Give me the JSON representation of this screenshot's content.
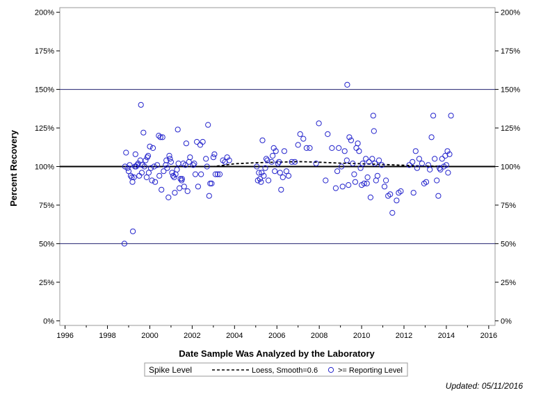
{
  "chart_data": {
    "type": "scatter",
    "xlabel": "Date Sample Was Analyzed by the Laboratory",
    "ylabel": "Percent Recovery",
    "xlim": [
      1995.75,
      2016.3
    ],
    "ylim": [
      -3,
      203
    ],
    "x_ticks": [
      1996,
      1998,
      2000,
      2002,
      2004,
      2006,
      2008,
      2010,
      2012,
      2014,
      2016
    ],
    "x_tick_labels": [
      "1996",
      "1998",
      "2000",
      "2002",
      "2004",
      "2006",
      "2008",
      "2010",
      "2012",
      "2014",
      "2016"
    ],
    "y_ticks": [
      0,
      25,
      50,
      75,
      100,
      125,
      150,
      175,
      200
    ],
    "y_tick_labels": [
      "0%",
      "25%",
      "50%",
      "75%",
      "100%",
      "125%",
      "150%",
      "175%",
      "200%"
    ],
    "grid": false,
    "reference_lines": [
      {
        "y": 50,
        "style": "thin",
        "color": "#1f1f6e"
      },
      {
        "y": 100,
        "style": "thick",
        "color": "#000000"
      },
      {
        "y": 150,
        "style": "thin",
        "color": "#1f1f6e"
      }
    ],
    "legend": {
      "placement": "bottom",
      "title": "Spike Level",
      "entries": [
        {
          "label": "Loess, Smooth=0.6",
          "marker": "dashed-line"
        },
        {
          "label": ">= Reporting Level",
          "marker": "circle"
        }
      ]
    },
    "series": [
      {
        "name": ">= Reporting Level",
        "kind": "scatter",
        "color": "#2222cc",
        "points": [
          [
            1998.8,
            50
          ],
          [
            1998.83,
            100
          ],
          [
            1998.88,
            109
          ],
          [
            1998.95,
            99
          ],
          [
            1999.0,
            97
          ],
          [
            1999.05,
            101
          ],
          [
            1999.1,
            94
          ],
          [
            1999.15,
            93
          ],
          [
            1999.18,
            90
          ],
          [
            1999.2,
            58
          ],
          [
            1999.25,
            93
          ],
          [
            1999.3,
            100
          ],
          [
            1999.32,
            108
          ],
          [
            1999.35,
            100
          ],
          [
            1999.4,
            101
          ],
          [
            1999.45,
            102
          ],
          [
            1999.5,
            94
          ],
          [
            1999.55,
            104
          ],
          [
            1999.58,
            140
          ],
          [
            1999.62,
            96
          ],
          [
            1999.65,
            101
          ],
          [
            1999.7,
            122
          ],
          [
            1999.75,
            100
          ],
          [
            1999.8,
            104
          ],
          [
            1999.85,
            93
          ],
          [
            1999.88,
            106
          ],
          [
            1999.92,
            107
          ],
          [
            1999.95,
            96
          ],
          [
            2000.0,
            113
          ],
          [
            2000.05,
            99
          ],
          [
            2000.1,
            91
          ],
          [
            2000.15,
            112
          ],
          [
            2000.2,
            100
          ],
          [
            2000.25,
            90
          ],
          [
            2000.35,
            101
          ],
          [
            2000.42,
            120
          ],
          [
            2000.45,
            94
          ],
          [
            2000.5,
            119
          ],
          [
            2000.55,
            85
          ],
          [
            2000.6,
            119
          ],
          [
            2000.65,
            97
          ],
          [
            2000.75,
            101
          ],
          [
            2000.78,
            104
          ],
          [
            2000.82,
            99
          ],
          [
            2000.88,
            80
          ],
          [
            2000.92,
            107
          ],
          [
            2000.95,
            105
          ],
          [
            2001.0,
            103
          ],
          [
            2001.05,
            96
          ],
          [
            2001.1,
            94
          ],
          [
            2001.15,
            93
          ],
          [
            2001.18,
            83
          ],
          [
            2001.22,
            95
          ],
          [
            2001.28,
            98
          ],
          [
            2001.32,
            124
          ],
          [
            2001.35,
            102
          ],
          [
            2001.4,
            86
          ],
          [
            2001.45,
            92
          ],
          [
            2001.5,
            91
          ],
          [
            2001.52,
            92
          ],
          [
            2001.58,
            102
          ],
          [
            2001.62,
            87
          ],
          [
            2001.68,
            101
          ],
          [
            2001.72,
            115
          ],
          [
            2001.78,
            84
          ],
          [
            2001.85,
            103
          ],
          [
            2001.9,
            106
          ],
          [
            2002.05,
            101
          ],
          [
            2002.1,
            102
          ],
          [
            2002.15,
            95
          ],
          [
            2002.22,
            116
          ],
          [
            2002.28,
            87
          ],
          [
            2002.38,
            114
          ],
          [
            2002.42,
            95
          ],
          [
            2002.5,
            116
          ],
          [
            2002.65,
            105
          ],
          [
            2002.7,
            100
          ],
          [
            2002.75,
            127
          ],
          [
            2002.8,
            81
          ],
          [
            2002.85,
            89
          ],
          [
            2002.92,
            89
          ],
          [
            2003.0,
            106
          ],
          [
            2003.05,
            108
          ],
          [
            2003.1,
            95
          ],
          [
            2003.2,
            95
          ],
          [
            2003.3,
            95
          ],
          [
            2003.45,
            104
          ],
          [
            2003.55,
            103
          ],
          [
            2003.65,
            106
          ],
          [
            2003.75,
            104
          ],
          [
            2005.05,
            100
          ],
          [
            2005.1,
            91
          ],
          [
            2005.15,
            96
          ],
          [
            2005.2,
            92
          ],
          [
            2005.25,
            90
          ],
          [
            2005.28,
            96
          ],
          [
            2005.32,
            117
          ],
          [
            2005.38,
            94
          ],
          [
            2005.45,
            99
          ],
          [
            2005.5,
            105
          ],
          [
            2005.55,
            104
          ],
          [
            2005.6,
            91
          ],
          [
            2005.75,
            103
          ],
          [
            2005.8,
            107
          ],
          [
            2005.85,
            112
          ],
          [
            2005.9,
            97
          ],
          [
            2005.95,
            110
          ],
          [
            2006.05,
            102
          ],
          [
            2006.1,
            103
          ],
          [
            2006.15,
            96
          ],
          [
            2006.2,
            85
          ],
          [
            2006.28,
            93
          ],
          [
            2006.35,
            110
          ],
          [
            2006.45,
            97
          ],
          [
            2006.55,
            94
          ],
          [
            2006.7,
            103
          ],
          [
            2006.85,
            103
          ],
          [
            2007.0,
            114
          ],
          [
            2007.1,
            121
          ],
          [
            2007.25,
            118
          ],
          [
            2007.4,
            112
          ],
          [
            2007.55,
            112
          ],
          [
            2007.85,
            102
          ],
          [
            2007.98,
            128
          ],
          [
            2008.3,
            91
          ],
          [
            2008.4,
            121
          ],
          [
            2008.6,
            112
          ],
          [
            2008.78,
            86
          ],
          [
            2008.85,
            97
          ],
          [
            2008.92,
            112
          ],
          [
            2009.05,
            100
          ],
          [
            2009.1,
            87
          ],
          [
            2009.2,
            110
          ],
          [
            2009.3,
            104
          ],
          [
            2009.32,
            153
          ],
          [
            2009.38,
            88
          ],
          [
            2009.42,
            119
          ],
          [
            2009.5,
            117
          ],
          [
            2009.58,
            102
          ],
          [
            2009.65,
            95
          ],
          [
            2009.7,
            90
          ],
          [
            2009.75,
            112
          ],
          [
            2009.82,
            115
          ],
          [
            2009.88,
            110
          ],
          [
            2009.95,
            99
          ],
          [
            2010.0,
            88
          ],
          [
            2010.05,
            102
          ],
          [
            2010.12,
            89
          ],
          [
            2010.2,
            105
          ],
          [
            2010.25,
            89
          ],
          [
            2010.28,
            93
          ],
          [
            2010.35,
            103
          ],
          [
            2010.42,
            80
          ],
          [
            2010.5,
            105
          ],
          [
            2010.55,
            133
          ],
          [
            2010.58,
            123
          ],
          [
            2010.62,
            102
          ],
          [
            2010.68,
            91
          ],
          [
            2010.75,
            94
          ],
          [
            2010.82,
            104
          ],
          [
            2010.95,
            101
          ],
          [
            2011.08,
            87
          ],
          [
            2011.15,
            91
          ],
          [
            2011.25,
            81
          ],
          [
            2011.35,
            82
          ],
          [
            2011.45,
            70
          ],
          [
            2011.65,
            78
          ],
          [
            2011.75,
            83
          ],
          [
            2011.85,
            84
          ],
          [
            2012.25,
            101
          ],
          [
            2012.4,
            103
          ],
          [
            2012.45,
            83
          ],
          [
            2012.55,
            110
          ],
          [
            2012.62,
            99
          ],
          [
            2012.72,
            105
          ],
          [
            2012.85,
            102
          ],
          [
            2012.95,
            89
          ],
          [
            2013.05,
            90
          ],
          [
            2013.15,
            101
          ],
          [
            2013.22,
            98
          ],
          [
            2013.3,
            119
          ],
          [
            2013.38,
            133
          ],
          [
            2013.45,
            105
          ],
          [
            2013.55,
            91
          ],
          [
            2013.62,
            81
          ],
          [
            2013.68,
            99
          ],
          [
            2013.72,
            98
          ],
          [
            2013.8,
            105
          ],
          [
            2013.88,
            100
          ],
          [
            2013.95,
            107
          ],
          [
            2014.0,
            101
          ],
          [
            2014.05,
            110
          ],
          [
            2014.08,
            96
          ],
          [
            2014.15,
            108
          ],
          [
            2014.22,
            133
          ]
        ]
      },
      {
        "name": "Loess, Smooth=0.6",
        "kind": "line",
        "style": "dashed",
        "color": "#000000",
        "points": [
          [
            1998.8,
            100
          ],
          [
            2000.0,
            100
          ],
          [
            2001.0,
            100
          ],
          [
            2002.0,
            100
          ],
          [
            2003.0,
            100
          ],
          [
            2003.5,
            100.8
          ],
          [
            2004.0,
            101.8
          ],
          [
            2005.0,
            102.5
          ],
          [
            2006.0,
            102.8
          ],
          [
            2007.0,
            103.2
          ],
          [
            2008.0,
            102.8
          ],
          [
            2009.0,
            102.2
          ],
          [
            2010.0,
            101.8
          ],
          [
            2011.0,
            101.3
          ],
          [
            2012.0,
            100.8
          ],
          [
            2013.0,
            100.3
          ],
          [
            2014.2,
            100
          ]
        ]
      }
    ]
  },
  "footer": {
    "updated_label": "Updated: 05/11/2016"
  }
}
